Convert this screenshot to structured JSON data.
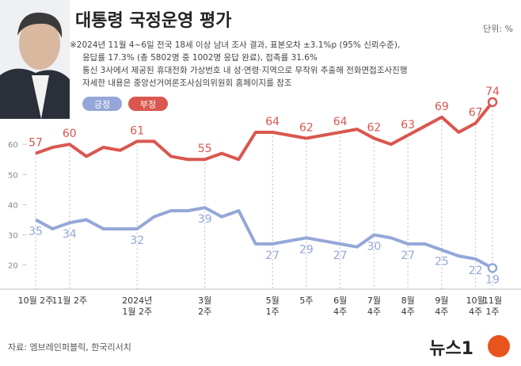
{
  "chart_data": {
    "type": "line",
    "title": "대통령 국정운영 평가",
    "unit": "단위: %",
    "notes": [
      "※2024년 11월 4~6일 전국 18세 이상 남녀 조사 결과, 표본오차 ±3.1%p (95% 신뢰수준),",
      "응답률 17.3% (총 5802명 중 1002명 응답 완료), 접촉률 31.6%",
      "통신 3사에서 제공된 휴대전화 가상번호 내 성·연령·지역으로 무작위 추출해 전화면접조사진행",
      "자세한 내용은 중앙선거여론조사심의위원회 홈페이지를 참조"
    ],
    "source": "자료: 엠브레인퍼블릭, 한국리서치",
    "logo": "뉴스1",
    "categories": [
      "10월 2주",
      null,
      "11월 2주",
      null,
      null,
      null,
      "2024년\n1월 2주",
      null,
      null,
      null,
      "3월\n2주",
      null,
      null,
      null,
      "5월\n1주",
      null,
      "5주",
      null,
      "6월\n4주",
      null,
      "7월\n4주",
      null,
      "8월\n4주",
      null,
      "9월\n4주",
      null,
      "10월\n4주",
      "11월\n1주"
    ],
    "series": [
      {
        "name": "긍정",
        "color": "#95a7d8",
        "values": [
          35,
          32,
          34,
          35,
          32,
          32,
          32,
          36,
          38,
          38,
          39,
          36,
          38,
          27,
          27,
          28,
          29,
          28,
          27,
          26,
          30,
          29,
          27,
          27,
          25,
          23,
          22,
          19
        ]
      },
      {
        "name": "부정",
        "color": "#d9574f",
        "values": [
          57,
          59,
          60,
          56,
          59,
          58,
          61,
          61,
          56,
          55,
          55,
          57,
          55,
          64,
          64,
          63,
          62,
          63,
          64,
          65,
          62,
          60,
          63,
          66,
          69,
          64,
          67,
          74
        ]
      }
    ],
    "ylim": [
      12,
      80
    ],
    "yticks": [
      20,
      30,
      40,
      50,
      60
    ]
  }
}
